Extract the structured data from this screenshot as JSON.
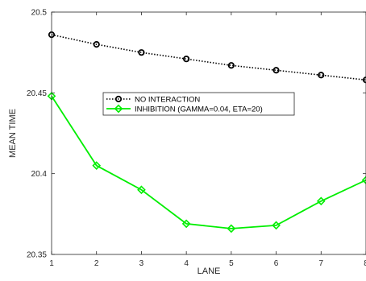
{
  "chart_data": {
    "type": "line",
    "xlabel": "LANE",
    "ylabel": "MEAN TIME",
    "x": [
      1,
      2,
      3,
      4,
      5,
      6,
      7,
      8
    ],
    "xlim": [
      1,
      8
    ],
    "ylim": [
      20.35,
      20.5
    ],
    "xticks": [
      "1",
      "2",
      "3",
      "4",
      "5",
      "6",
      "7",
      "8"
    ],
    "yticks": [
      "20.35",
      "20.4",
      "20.45",
      "20.5"
    ],
    "grid": false,
    "legend_position": "upper-middle",
    "series": [
      {
        "name": "NO INTERACTION",
        "color": "#000000",
        "line_style": "dotted",
        "marker": "circle",
        "values": [
          20.486,
          20.48,
          20.475,
          20.471,
          20.467,
          20.464,
          20.461,
          20.458
        ]
      },
      {
        "name": "INHIBITION (GAMMA=0.04, ETA=20)",
        "color": "#00ee00",
        "line_style": "solid",
        "marker": "diamond",
        "values": [
          20.448,
          20.405,
          20.39,
          20.369,
          20.366,
          20.368,
          20.383,
          20.396
        ]
      }
    ]
  }
}
